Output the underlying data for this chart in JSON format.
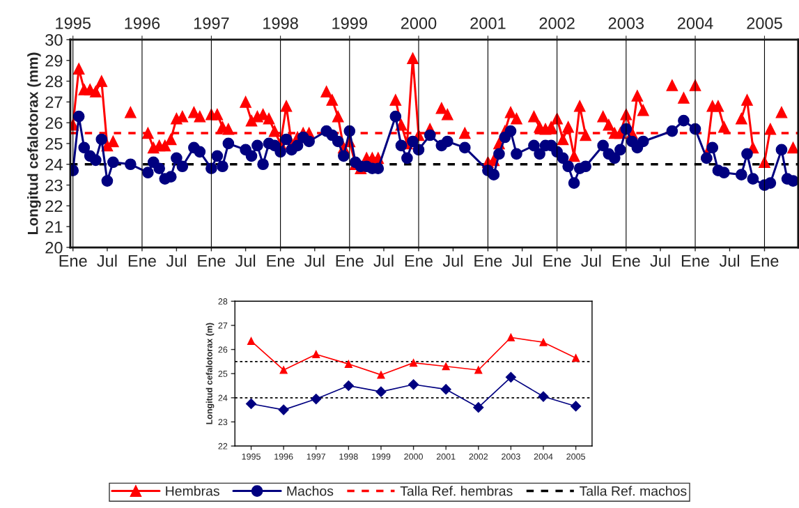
{
  "chart_data": [
    {
      "type": "line",
      "ylabel": "Longitud cefalotorax (mm)",
      "ylim": [
        20,
        30
      ],
      "yticks": [
        20,
        21,
        22,
        23,
        24,
        25,
        26,
        27,
        28,
        29,
        30
      ],
      "xlim": [
        "1994-12-18",
        "2005-06-28"
      ],
      "xticks": [
        {
          "value": "1995-01",
          "label": "Ene"
        },
        {
          "value": "1995-07",
          "label": "Jul"
        },
        {
          "value": "1996-01",
          "label": "Ene"
        },
        {
          "value": "1996-07",
          "label": "Jul"
        },
        {
          "value": "1997-01",
          "label": "Ene"
        },
        {
          "value": "1997-07",
          "label": "Jul"
        },
        {
          "value": "1998-01",
          "label": "Ene"
        },
        {
          "value": "1998-07",
          "label": "Jul"
        },
        {
          "value": "1999-01",
          "label": "Ene"
        },
        {
          "value": "1999-07",
          "label": "Jul"
        },
        {
          "value": "2000-01",
          "label": "Ene"
        },
        {
          "value": "2000-07",
          "label": "Jul"
        },
        {
          "value": "2001-01",
          "label": "Ene"
        },
        {
          "value": "2001-07",
          "label": "Jul"
        },
        {
          "value": "2002-01",
          "label": "Ene"
        },
        {
          "value": "2002-07",
          "label": "Jul"
        },
        {
          "value": "2003-01",
          "label": "Ene"
        },
        {
          "value": "2003-07",
          "label": "Jul"
        },
        {
          "value": "2004-01",
          "label": "Ene"
        },
        {
          "value": "2004-07",
          "label": "Jul"
        },
        {
          "value": "2005-01",
          "label": "Ene"
        }
      ],
      "x2lim": [
        "1994-12-18",
        "2005-06-28"
      ],
      "x2ticks": [
        {
          "value": "1995-01",
          "label": "1995"
        },
        {
          "value": "1996-01",
          "label": "1996"
        },
        {
          "value": "1997-01",
          "label": "1997"
        },
        {
          "value": "1998-01",
          "label": "1998"
        },
        {
          "value": "1999-01",
          "label": "1999"
        },
        {
          "value": "2000-01",
          "label": "2000"
        },
        {
          "value": "2001-01",
          "label": "2001"
        },
        {
          "value": "2002-01",
          "label": "2002"
        },
        {
          "value": "2003-01",
          "label": "2003"
        },
        {
          "value": "2004-01",
          "label": "2004"
        },
        {
          "value": "2005-01",
          "label": "2005"
        }
      ],
      "grid": "x",
      "legend": "bottom",
      "x": [
        "1995-01",
        "1995-02",
        "1995-03",
        "1995-04",
        "1995-05",
        "1995-06",
        "1995-07",
        "1995-08",
        "1995-09",
        "1995-10",
        "1995-11",
        "1995-12",
        "1996-01",
        "1996-02",
        "1996-03",
        "1996-04",
        "1996-05",
        "1996-06",
        "1996-07",
        "1996-08",
        "1996-09",
        "1996-10",
        "1996-11",
        "1996-12",
        "1997-01",
        "1997-02",
        "1997-03",
        "1997-04",
        "1997-05",
        "1997-06",
        "1997-07",
        "1997-08",
        "1997-09",
        "1997-10",
        "1997-11",
        "1997-12",
        "1998-01",
        "1998-02",
        "1998-03",
        "1998-04",
        "1998-05",
        "1998-06",
        "1998-07",
        "1998-08",
        "1998-09",
        "1998-10",
        "1998-11",
        "1998-12",
        "1999-01",
        "1999-02",
        "1999-03",
        "1999-04",
        "1999-05",
        "1999-06",
        "1999-07",
        "1999-08",
        "1999-09",
        "1999-10",
        "1999-11",
        "1999-12",
        "2000-01",
        "2000-02",
        "2000-03",
        "2000-04",
        "2000-05",
        "2000-06",
        "2000-07",
        "2000-08",
        "2000-09",
        "2000-10",
        "2000-11",
        "2000-12",
        "2001-01",
        "2001-02",
        "2001-03",
        "2001-04",
        "2001-05",
        "2001-06",
        "2001-07",
        "2001-08",
        "2001-09",
        "2001-10",
        "2001-11",
        "2001-12",
        "2002-01",
        "2002-02",
        "2002-03",
        "2002-04",
        "2002-05",
        "2002-06",
        "2002-07",
        "2002-08",
        "2002-09",
        "2002-10",
        "2002-11",
        "2002-12",
        "2003-01",
        "2003-02",
        "2003-03",
        "2003-04",
        "2003-05",
        "2003-06",
        "2003-07",
        "2003-08",
        "2003-09",
        "2003-10",
        "2003-11",
        "2003-12",
        "2004-01",
        "2004-02",
        "2004-03",
        "2004-04",
        "2004-05",
        "2004-06",
        "2004-07",
        "2004-08",
        "2004-09",
        "2004-10",
        "2004-11",
        "2004-12",
        "2005-01",
        "2005-02",
        "2005-03",
        "2005-04",
        "2005-05",
        "2005-06"
      ],
      "series": [
        {
          "name": "Hembras",
          "color": "#ff0000",
          "marker": "triangle",
          "values": [
            25.9,
            28.6,
            27.6,
            27.6,
            27.5,
            28.0,
            24.9,
            25.1,
            null,
            null,
            26.5,
            null,
            null,
            25.5,
            24.8,
            24.9,
            24.9,
            25.2,
            26.2,
            26.3,
            null,
            26.5,
            26.3,
            null,
            26.4,
            26.4,
            25.8,
            25.7,
            null,
            null,
            27.0,
            26.1,
            26.3,
            26.4,
            26.2,
            25.6,
            25.0,
            26.8,
            25.0,
            25.3,
            25.5,
            25.5,
            null,
            null,
            27.5,
            27.1,
            26.3,
            24.8,
            25.1,
            24.0,
            23.8,
            24.3,
            24.3,
            24.3,
            null,
            null,
            27.1,
            25.9,
            25.0,
            29.1,
            25.4,
            null,
            25.7,
            null,
            26.7,
            26.4,
            null,
            null,
            25.5,
            null,
            null,
            null,
            24.1,
            24.2,
            25.0,
            25.6,
            26.5,
            26.2,
            null,
            null,
            26.3,
            25.8,
            25.7,
            25.8,
            26.2,
            25.2,
            25.8,
            24.4,
            26.8,
            25.4,
            null,
            null,
            26.3,
            25.9,
            25.5,
            25.5,
            26.4,
            25.5,
            27.3,
            26.6,
            null,
            null,
            null,
            null,
            27.8,
            null,
            27.2,
            null,
            27.8,
            null,
            24.5,
            26.8,
            26.8,
            25.8,
            null,
            null,
            26.2,
            27.1,
            24.8,
            null,
            24.1,
            25.7,
            null,
            26.5,
            null,
            24.8
          ]
        },
        {
          "name": "Machos",
          "color": "#000080",
          "marker": "circle",
          "x": [
            "1995-01",
            "1995-02",
            "1995-03",
            "1995-04",
            "1995-05",
            "1995-06",
            "1995-07",
            "1995-08",
            "1995-11",
            "1996-02",
            "1996-03",
            "1996-04",
            "1996-05",
            "1996-06",
            "1996-07",
            "1996-08",
            "1996-10",
            "1996-11",
            "1997-01",
            "1997-02",
            "1997-03",
            "1997-04",
            "1997-07",
            "1997-08",
            "1997-09",
            "1997-10",
            "1997-11",
            "1997-12",
            "1998-01",
            "1998-02",
            "1998-03",
            "1998-04",
            "1998-05",
            "1998-06",
            "1998-09",
            "1998-10",
            "1998-11",
            "1998-12",
            "1999-01",
            "1999-02",
            "1999-03",
            "1999-04",
            "1999-05",
            "1999-06",
            "1999-09",
            "1999-10",
            "1999-11",
            "1999-12",
            "2000-01",
            "2000-03",
            "2000-05",
            "2000-06",
            "2000-09",
            "2001-01",
            "2001-02",
            "2001-03",
            "2001-04",
            "2001-05",
            "2001-06",
            "2001-09",
            "2001-10",
            "2001-11",
            "2001-12",
            "2002-01",
            "2002-02",
            "2002-03",
            "2002-04",
            "2002-05",
            "2002-06",
            "2002-09",
            "2002-10",
            "2002-11",
            "2002-12",
            "2003-01",
            "2003-02",
            "2003-03",
            "2003-04",
            "2003-09",
            "2003-11",
            "2004-01",
            "2004-03",
            "2004-04",
            "2004-05",
            "2004-06",
            "2004-09",
            "2004-10",
            "2004-11",
            "2005-01",
            "2005-02",
            "2005-04",
            "2005-05",
            "2005-06"
          ],
          "values": [
            23.7,
            26.3,
            24.8,
            24.4,
            24.2,
            25.2,
            23.2,
            24.1,
            24.0,
            23.6,
            24.1,
            23.8,
            23.3,
            23.4,
            24.3,
            23.9,
            24.8,
            24.6,
            23.8,
            24.4,
            23.9,
            25.0,
            24.7,
            24.4,
            24.9,
            24.0,
            25.0,
            24.9,
            24.6,
            25.2,
            24.7,
            24.9,
            25.3,
            25.1,
            25.6,
            25.4,
            25.1,
            24.4,
            25.6,
            24.1,
            23.9,
            23.9,
            23.8,
            23.8,
            26.3,
            24.9,
            24.3,
            25.1,
            24.7,
            25.4,
            24.9,
            25.1,
            24.8,
            23.7,
            23.5,
            24.5,
            25.3,
            25.6,
            24.5,
            24.9,
            24.5,
            24.9,
            24.9,
            24.6,
            24.3,
            23.9,
            23.1,
            23.8,
            23.9,
            24.9,
            24.5,
            24.3,
            24.7,
            25.7,
            25.1,
            24.8,
            25.1,
            25.6,
            26.1,
            25.7,
            24.3,
            24.8,
            23.7,
            23.6,
            23.5,
            24.5,
            23.3,
            23.0,
            23.1,
            24.7,
            23.3,
            23.2
          ]
        }
      ],
      "ref_lines": [
        {
          "axis": "y",
          "value": 25.5,
          "label": "Talla Ref. hembras",
          "color": "#ff0000",
          "line_style": "dashed"
        },
        {
          "axis": "y",
          "value": 24.0,
          "label": "Talla Ref. machos",
          "color": "#000000",
          "line_style": "dashed"
        }
      ]
    },
    {
      "type": "line",
      "ylabel": "Longitud cefalotorax (m)",
      "ylim": [
        22,
        28
      ],
      "yticks": [
        22,
        23,
        24,
        25,
        26,
        27,
        28
      ],
      "categories": [
        "1995",
        "1996",
        "1997",
        "1998",
        "1999",
        "2000",
        "2001",
        "2002",
        "2003",
        "2004",
        "2005"
      ],
      "series": [
        {
          "color": "#ff0000",
          "marker": "triangle",
          "values": [
            26.35,
            25.15,
            25.8,
            25.4,
            24.95,
            25.45,
            25.3,
            25.15,
            26.5,
            26.3,
            25.65
          ]
        },
        {
          "color": "#000080",
          "marker": "diamond",
          "values": [
            23.75,
            23.5,
            23.95,
            24.5,
            24.25,
            24.55,
            24.35,
            23.6,
            24.85,
            24.05,
            23.65
          ]
        }
      ],
      "ref_lines": [
        {
          "axis": "y",
          "value": 25.5,
          "color": "#000000",
          "line_style": "dotted"
        },
        {
          "axis": "y",
          "value": 24.0,
          "color": "#000000",
          "line_style": "dotted"
        }
      ]
    }
  ]
}
